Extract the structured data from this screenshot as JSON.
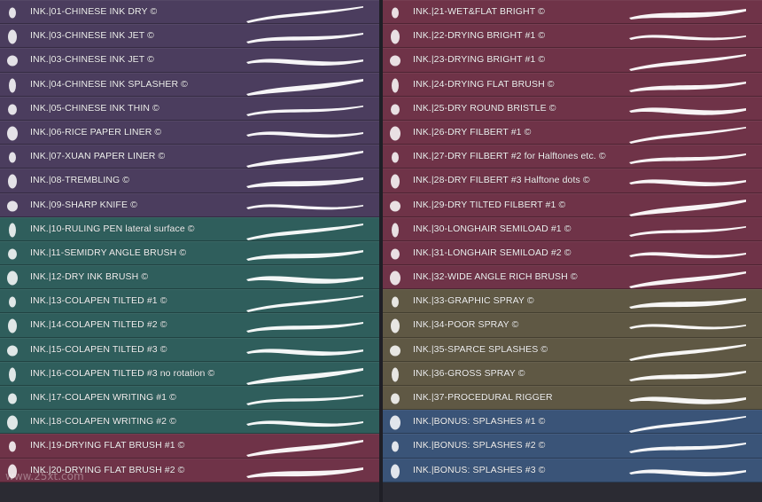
{
  "left_items": [
    {
      "label": "INK.|01-CHINESE INK DRY ©",
      "color": "purple"
    },
    {
      "label": "INK.|03-CHINESE INK JET ©",
      "color": "purple"
    },
    {
      "label": "INK.|03-CHINESE INK JET ©",
      "color": "purple"
    },
    {
      "label": "INK.|04-CHINESE INK SPLASHER ©",
      "color": "purple"
    },
    {
      "label": "INK.|05-CHINESE INK THIN ©",
      "color": "purple"
    },
    {
      "label": "INK.|06-RICE PAPER LINER ©",
      "color": "purple"
    },
    {
      "label": "INK.|07-XUAN PAPER LINER ©",
      "color": "purple"
    },
    {
      "label": "INK.|08-TREMBLING ©",
      "color": "purple"
    },
    {
      "label": "INK.|09-SHARP KNIFE ©",
      "color": "purple"
    },
    {
      "label": "INK.|10-RULING PEN lateral surface ©",
      "color": "green"
    },
    {
      "label": "INK.|11-SEMIDRY ANGLE BRUSH ©",
      "color": "green"
    },
    {
      "label": "INK.|12-DRY INK BRUSH ©",
      "color": "green"
    },
    {
      "label": "INK.|13-COLAPEN TILTED #1 ©",
      "color": "green"
    },
    {
      "label": "INK.|14-COLAPEN TILTED #2 ©",
      "color": "green"
    },
    {
      "label": "INK.|15-COLAPEN TILTED #3 ©",
      "color": "green"
    },
    {
      "label": "INK.|16-COLAPEN TILTED #3 no rotation ©",
      "color": "green"
    },
    {
      "label": "INK.|17-COLAPEN WRITING #1 ©",
      "color": "green"
    },
    {
      "label": "INK.|18-COLAPEN WRITING #2 ©",
      "color": "green"
    },
    {
      "label": "INK.|19-DRYING FLAT BRUSH #1 ©",
      "color": "red"
    },
    {
      "label": "INK.|20-DRYING FLAT BRUSH #2 ©",
      "color": "red"
    }
  ],
  "right_items": [
    {
      "label": "INK.|21-WET&FLAT BRIGHT ©",
      "color": "red"
    },
    {
      "label": "INK.|22-DRYING BRIGHT #1 ©",
      "color": "red"
    },
    {
      "label": "INK.|23-DRYING BRIGHT #1 ©",
      "color": "red"
    },
    {
      "label": "INK.|24-DRYING FLAT BRUSH ©",
      "color": "red"
    },
    {
      "label": "INK.|25-DRY ROUND BRISTLE ©",
      "color": "red"
    },
    {
      "label": "INK.|26-DRY FILBERT #1 ©",
      "color": "red"
    },
    {
      "label": "INK.|27-DRY FILBERT #2 for Halftones etc. ©",
      "color": "red"
    },
    {
      "label": "INK.|28-DRY FILBERT #3 Halftone dots ©",
      "color": "red"
    },
    {
      "label": "INK.|29-DRY TILTED FILBERT #1 ©",
      "color": "red"
    },
    {
      "label": "INK.|30-LONGHAIR SEMILOAD #1 ©",
      "color": "red"
    },
    {
      "label": "INK.|31-LONGHAIR SEMILOAD #2 ©",
      "color": "red"
    },
    {
      "label": "INK.|32-WIDE ANGLE RICH BRUSH ©",
      "color": "red"
    },
    {
      "label": "INK.|33-GRAPHIC SPRAY ©",
      "color": "olive"
    },
    {
      "label": "INK.|34-POOR SPRAY ©",
      "color": "olive"
    },
    {
      "label": "INK.|35-SPARCE SPLASHES ©",
      "color": "olive"
    },
    {
      "label": "INK.|36-GROSS SPRAY ©",
      "color": "olive"
    },
    {
      "label": "INK.|37-PROCEDURAL RIGGER",
      "color": "olive"
    },
    {
      "label": "INK.|BONUS: SPLASHES #1 ©",
      "color": "blue"
    },
    {
      "label": "INK.|BONUS: SPLASHES #2 ©",
      "color": "blue"
    },
    {
      "label": "INK.|BONUS: SPLASHES #3 ©",
      "color": "blue"
    }
  ],
  "watermark": "www.25xt.com"
}
